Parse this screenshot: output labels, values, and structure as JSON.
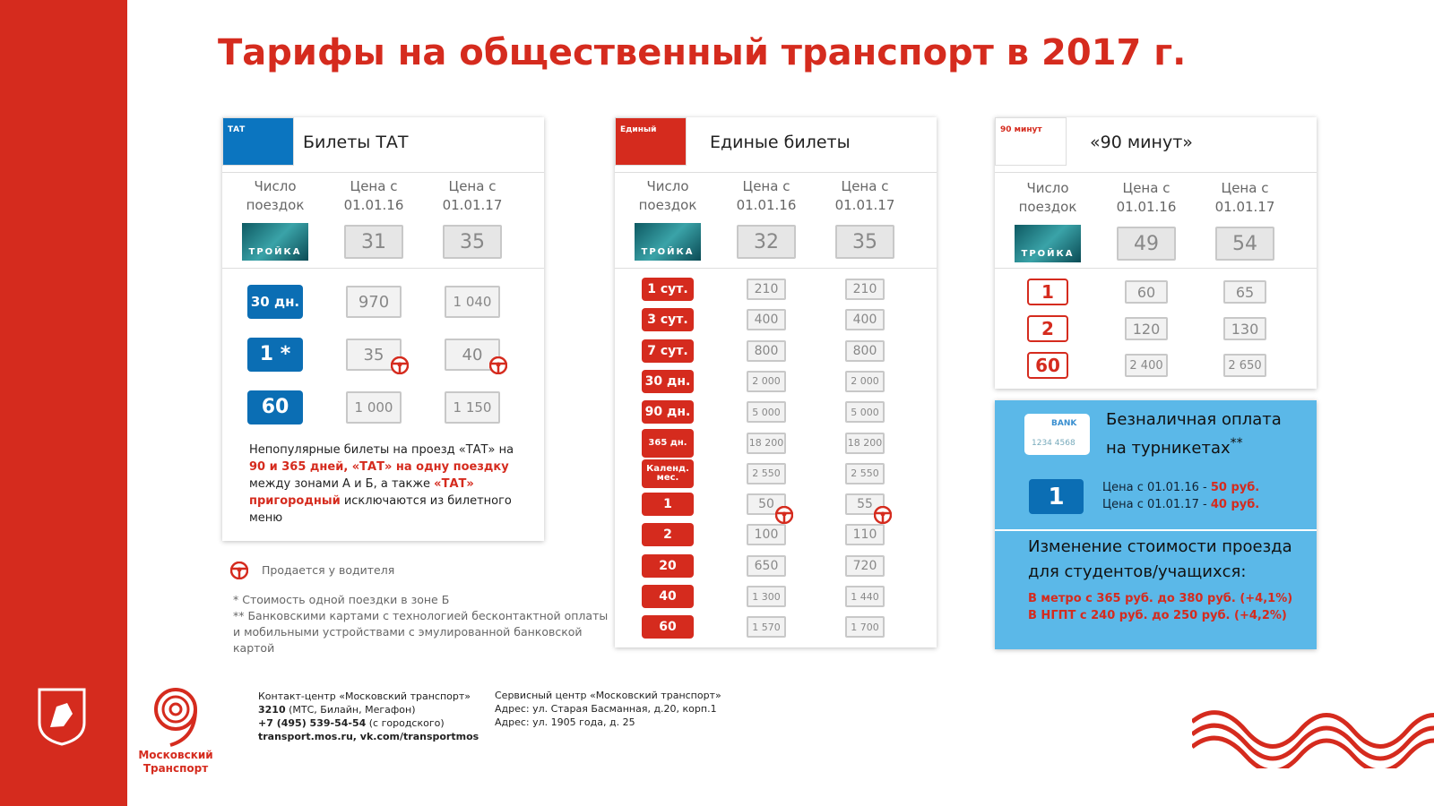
{
  "title": "Тарифы на общественный транспорт в 2017 г.",
  "columns": {
    "count": "Число поездок",
    "old": "Цена с 01.01.16",
    "new": "Цена с 01.01.17"
  },
  "troika_label": "ТРОЙКА",
  "panels": [
    {
      "name": "Билеты ТАТ",
      "card_text": "ТАТ",
      "card_color": "#0b75c0",
      "label_color": "#0b6eb4",
      "label_outline": false,
      "troika": {
        "old": "31",
        "new": "35"
      },
      "rows": [
        {
          "label": "30 дн.",
          "old": "970",
          "new": "1 040",
          "driver": false
        },
        {
          "label": "1 *",
          "old": "35",
          "new": "40",
          "driver": true
        },
        {
          "label": "60",
          "old": "1 000",
          "new": "1 150",
          "driver": false
        }
      ],
      "note": [
        {
          "text": "Непопулярные билеты на проезд «ТАТ» на ",
          "red": false
        },
        {
          "text": "90 и 365 дней, «ТАТ» на одну поездку",
          "red": true
        },
        {
          "text": " между зонами А и Б, а также ",
          "red": false
        },
        {
          "text": "«ТАТ» пригородный",
          "red": true
        },
        {
          "text": " исключаются из билетного меню",
          "red": false
        }
      ]
    },
    {
      "name": "Единые билеты",
      "card_text": "Единый",
      "card_color": "#d52b1e",
      "label_color": "#d52b1e",
      "label_outline": false,
      "troika": {
        "old": "32",
        "new": "35"
      },
      "rows": [
        {
          "label": "1 сут.",
          "old": "210",
          "new": "210",
          "driver": false
        },
        {
          "label": "3 сут.",
          "old": "400",
          "new": "400",
          "driver": false
        },
        {
          "label": "7 сут.",
          "old": "800",
          "new": "800",
          "driver": false
        },
        {
          "label": "30 дн.",
          "old": "2 000",
          "new": "2 000",
          "driver": false
        },
        {
          "label": "90 дн.",
          "old": "5 000",
          "new": "5 000",
          "driver": false
        },
        {
          "label": "365 дн.",
          "old": "18 200",
          "new": "18 200",
          "driver": false
        },
        {
          "label": "Календ. мес.",
          "old": "2 550",
          "new": "2 550",
          "driver": false
        },
        {
          "label": "1",
          "old": "50",
          "new": "55",
          "driver": true
        },
        {
          "label": "2",
          "old": "100",
          "new": "110",
          "driver": false
        },
        {
          "label": "20",
          "old": "650",
          "new": "720",
          "driver": false
        },
        {
          "label": "40",
          "old": "1 300",
          "new": "1 440",
          "driver": false
        },
        {
          "label": "60",
          "old": "1 570",
          "new": "1 700",
          "driver": false
        }
      ]
    },
    {
      "name": "«90 минут»",
      "card_text": "90 минут",
      "card_color": "#ffffff",
      "label_color": "#d52b1e",
      "label_outline": true,
      "troika": {
        "old": "49",
        "new": "54"
      },
      "rows": [
        {
          "label": "1",
          "old": "60",
          "new": "65",
          "driver": false
        },
        {
          "label": "2",
          "old": "120",
          "new": "130",
          "driver": false
        },
        {
          "label": "60",
          "old": "2 400",
          "new": "2 650",
          "driver": false
        }
      ]
    }
  ],
  "driver_legend": "Продается у водителя",
  "footnotes": [
    "* Стоимость одной поездки в зоне Б",
    "** Банковскими картами с технологией бесконтактной оплаты и мобильными устройствами с эмулированной банковской картой"
  ],
  "bank": {
    "title": "Безналичная оплата на турникетах",
    "mark": "**",
    "card_text": "BANK",
    "card_number": "1234 4568",
    "row_label": "1",
    "prices": [
      {
        "prefix": "Цена с 01.01.16 - ",
        "value": "50 руб."
      },
      {
        "prefix": "Цена с 01.01.17 - ",
        "value": "40 руб."
      }
    ],
    "students_title": "Изменение стоимости проезда для студентов/учащихся:",
    "students_lines": [
      "В метро с 365 руб. до 380 руб. (+4,1%)",
      "В НГПТ с 240 руб. до 250 руб. (+4,2%)"
    ]
  },
  "footer": {
    "logo": "Московский Транспорт",
    "contact_title": "Контакт-центр «Московский транспорт»",
    "contacts": [
      {
        "bold": "3210",
        "rest": " (МТС, Билайн, Мегафон)"
      },
      {
        "bold": "+7 (495) 539-54-54",
        "rest": " (с городского)"
      }
    ],
    "site": "transport.mos.ru, vk.com/transportmos",
    "service_title": "Сервисный центр «Московский транспорт»",
    "service_lines": [
      "Адрес: ул. Старая Басманная, д.20, корп.1",
      "Адрес: ул. 1905 года, д. 25"
    ]
  }
}
